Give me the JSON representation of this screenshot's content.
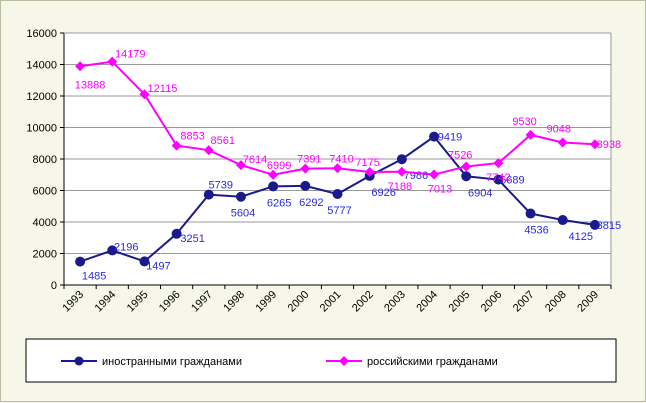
{
  "chart_data": {
    "type": "line",
    "title": "",
    "xlabel": "",
    "ylabel": "",
    "x": [
      "1993",
      "1994",
      "1995",
      "1996",
      "1997",
      "1998",
      "1999",
      "2000",
      "2001",
      "2002",
      "2003",
      "2004",
      "2005",
      "2006",
      "2007",
      "2008",
      "2009"
    ],
    "ylim": [
      0,
      16000
    ],
    "yticks": [
      0,
      2000,
      4000,
      6000,
      8000,
      10000,
      12000,
      14000,
      16000
    ],
    "grid": true,
    "legend": "bottom",
    "series": [
      {
        "name": "иностранными гражданами",
        "color": "#1a1a8c",
        "label_color": "#2a2ae0",
        "marker": "circle",
        "values": [
          1485,
          2196,
          1497,
          3251,
          5739,
          5604,
          6265,
          6292,
          5777,
          6926,
          7986,
          9419,
          6904,
          6689,
          4536,
          4125,
          3815
        ]
      },
      {
        "name": "российскими гражданами",
        "color": "#ff00ff",
        "label_color": "#ff00ff",
        "marker": "diamond",
        "values": [
          13888,
          14179,
          12115,
          8853,
          8561,
          7614,
          6999,
          7391,
          7410,
          7175,
          7188,
          7013,
          7526,
          7742,
          9530,
          9048,
          8938
        ]
      }
    ]
  }
}
